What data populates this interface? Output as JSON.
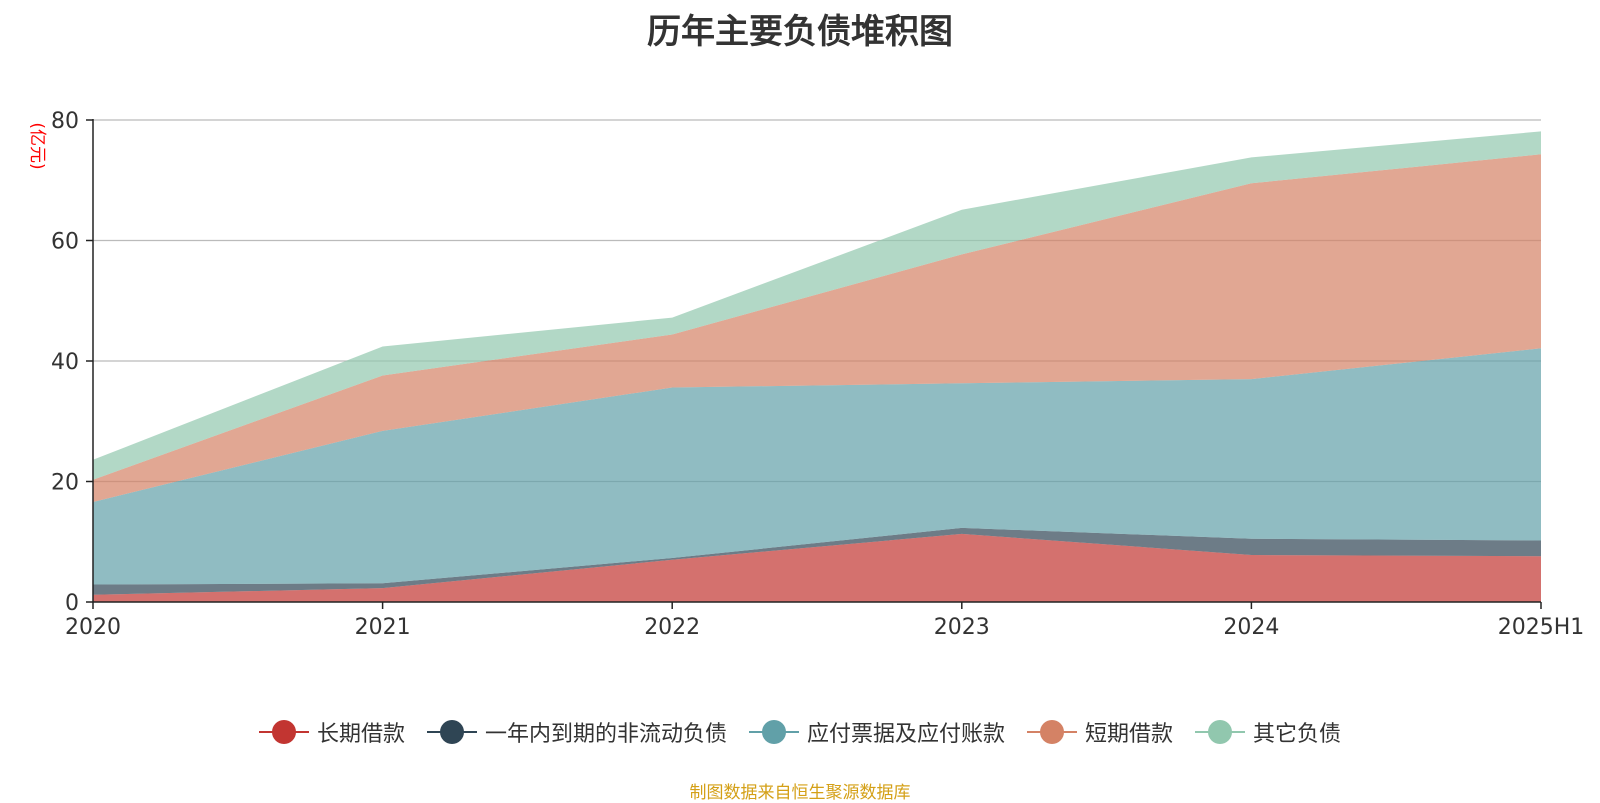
{
  "chart_data": {
    "type": "area",
    "stacked": true,
    "title": "历年主要负债堆积图",
    "ylabel": "(亿元)",
    "xlabel": "",
    "categories": [
      "2020",
      "2021",
      "2022",
      "2023",
      "2024",
      "2025H1"
    ],
    "ylim": [
      0,
      80
    ],
    "yticks": [
      0,
      20,
      40,
      60,
      80
    ],
    "grid": true,
    "legend_position": "bottom",
    "series": [
      {
        "name": "长期借款",
        "color": "#c23531",
        "values": [
          1.2,
          2.3,
          7.0,
          11.3,
          7.8,
          7.6
        ]
      },
      {
        "name": "一年内到期的非流动负债",
        "color": "#2f4554",
        "values": [
          1.7,
          0.8,
          0.3,
          1.0,
          2.7,
          2.6
        ]
      },
      {
        "name": "应付票据及应付账款",
        "color": "#61a0a8",
        "values": [
          13.7,
          25.3,
          28.3,
          24.0,
          26.5,
          31.9
        ]
      },
      {
        "name": "短期借款",
        "color": "#d48265",
        "values": [
          3.7,
          9.2,
          8.8,
          21.4,
          32.5,
          32.2
        ]
      },
      {
        "name": "其它负债",
        "color": "#91c7ae",
        "values": [
          3.3,
          4.8,
          2.8,
          7.4,
          4.3,
          3.8
        ]
      }
    ]
  },
  "source_text": "制图数据来自恒生聚源数据库"
}
